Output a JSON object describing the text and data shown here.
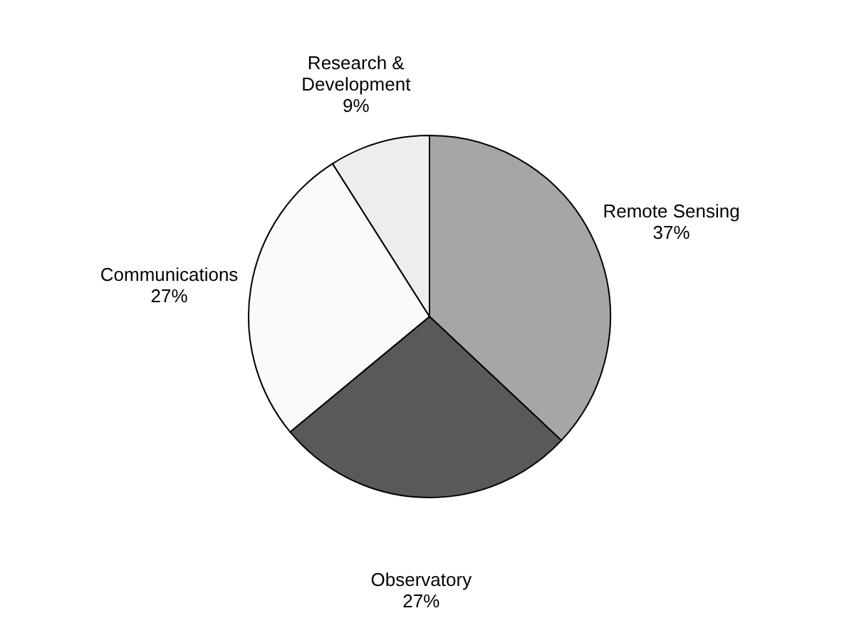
{
  "chart_data": {
    "type": "pie",
    "categories": [
      "Remote Sensing",
      "Observatory",
      "Communications",
      "Research & Development"
    ],
    "values": [
      37,
      27,
      27,
      9
    ],
    "colors": [
      "#a6a6a6",
      "#595959",
      "#fafafa",
      "#ededed"
    ],
    "value_labels": [
      "37%",
      "27%",
      "27%",
      "9%"
    ],
    "legend": false
  }
}
